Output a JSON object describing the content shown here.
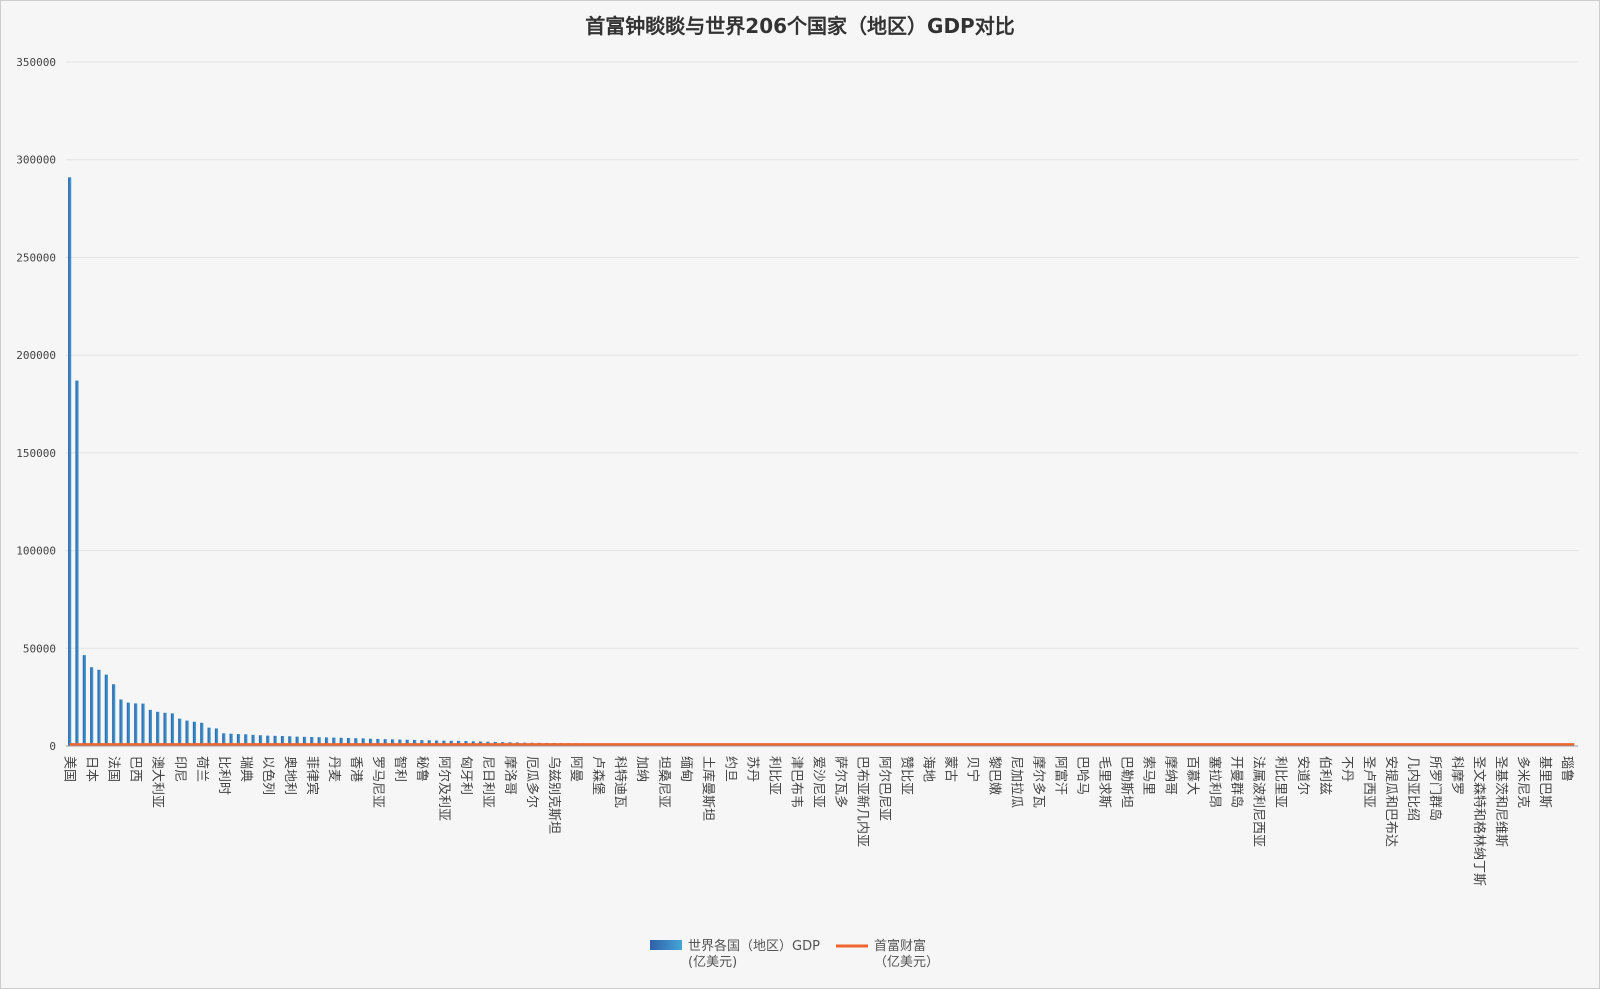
{
  "chart_data": {
    "type": "bar",
    "title": "首富钟睒睒与世界206个国家（地区）GDP对比",
    "categories": [
      "美国",
      null,
      null,
      "日本",
      null,
      null,
      "法国",
      null,
      null,
      "巴西",
      null,
      null,
      "澳大利亚",
      null,
      null,
      "印尼",
      null,
      null,
      "荷兰",
      null,
      null,
      "比利时",
      null,
      null,
      "瑞典",
      null,
      null,
      "以色列",
      null,
      null,
      "奥地利",
      null,
      null,
      "菲律宾",
      null,
      null,
      "丹麦",
      null,
      null,
      "香港",
      null,
      null,
      "罗马尼亚",
      null,
      null,
      "智利",
      null,
      null,
      "秘鲁",
      null,
      null,
      "阿尔及利亚",
      null,
      null,
      "匈牙利",
      null,
      null,
      "尼日利亚",
      null,
      null,
      "摩洛哥",
      null,
      null,
      "厄瓜多尔",
      null,
      null,
      "乌兹别克斯坦",
      null,
      null,
      "阿曼",
      null,
      null,
      "卢森堡",
      null,
      null,
      "科特迪瓦",
      null,
      null,
      "加纳",
      null,
      null,
      "坦桑尼亚",
      null,
      null,
      "缅甸",
      null,
      null,
      "土库曼斯坦",
      null,
      null,
      "约旦",
      null,
      null,
      "苏丹",
      null,
      null,
      "利比亚",
      null,
      null,
      "津巴布韦",
      null,
      null,
      "爱沙尼亚",
      null,
      null,
      "萨尔瓦多",
      null,
      null,
      "巴布亚新几内亚",
      null,
      null,
      "阿尔巴尼亚",
      null,
      null,
      "赞比亚",
      null,
      null,
      "海地",
      null,
      null,
      "蒙古",
      null,
      null,
      "贝宁",
      null,
      null,
      "黎巴嫩",
      null,
      null,
      "尼加拉瓜",
      null,
      null,
      "摩尔多瓦",
      null,
      null,
      "阿富汗",
      null,
      null,
      "巴哈马",
      null,
      null,
      "毛里求斯",
      null,
      null,
      "巴勒斯坦",
      null,
      null,
      "索马里",
      null,
      null,
      "摩纳哥",
      null,
      null,
      "百慕大",
      null,
      null,
      "塞拉利昂",
      null,
      null,
      "开曼群岛",
      null,
      null,
      "法属波利尼西亚",
      null,
      null,
      "利比里亚",
      null,
      null,
      "安道尔",
      null,
      null,
      "伯利兹",
      null,
      null,
      "不丹",
      null,
      null,
      "圣卢西亚",
      null,
      null,
      "安提瓜和巴布达",
      null,
      null,
      "几内亚比绍",
      null,
      null,
      "所罗门群岛",
      null,
      null,
      "科摩罗",
      null,
      null,
      "圣文森特和格林纳丁斯",
      null,
      null,
      "圣基茨和尼维斯",
      null,
      null,
      "多米尼克",
      null,
      null,
      "基里巴斯",
      null,
      null,
      "瑙鲁",
      null
    ],
    "series": [
      {
        "name": "世界各国（地区）GDP\n(亿美元)",
        "type": "bar",
        "color": "#3a8fcb",
        "values": [
          291000,
          187000,
          46500,
          40300,
          39000,
          36500,
          31600,
          23800,
          22200,
          21800,
          21700,
          18500,
          17500,
          17000,
          16700,
          14000,
          13000,
          12400,
          11900,
          9400,
          9000,
          6500,
          6300,
          6100,
          6000,
          5700,
          5500,
          5300,
          5200,
          5100,
          5000,
          4800,
          4700,
          4600,
          4500,
          4400,
          4300,
          4200,
          4100,
          4000,
          3900,
          3700,
          3600,
          3500,
          3400,
          3300,
          3200,
          3100,
          3000,
          2900,
          2800,
          2700,
          2650,
          2600,
          2500,
          2400,
          2300,
          2200,
          2100,
          2000,
          1900,
          1800,
          1700,
          1650,
          1600,
          1550,
          1500,
          1450,
          1400,
          1350,
          1300,
          1250,
          1200,
          1150,
          1100,
          1050,
          1000,
          960,
          920,
          880,
          850,
          820,
          800,
          780,
          760,
          740,
          720,
          700,
          680,
          660,
          640,
          620,
          600,
          580,
          560,
          540,
          520,
          500,
          480,
          460,
          440,
          420,
          410,
          400,
          390,
          380,
          370,
          360,
          350,
          340,
          330,
          320,
          310,
          300,
          290,
          280,
          270,
          260,
          250,
          240,
          230,
          220,
          210,
          200,
          190,
          180,
          175,
          170,
          165,
          160,
          155,
          150,
          145,
          140,
          135,
          130,
          125,
          120,
          115,
          110,
          105,
          100,
          95,
          90,
          86,
          82,
          78,
          74,
          70,
          66,
          62,
          58,
          55,
          52,
          49,
          46,
          43,
          40,
          38,
          36,
          34,
          32,
          30,
          28,
          26,
          24,
          22,
          20,
          19,
          18,
          17,
          16,
          15,
          14,
          13,
          12,
          11,
          10,
          9.5,
          9,
          8.5,
          8,
          7.5,
          7,
          6.5,
          6,
          5.5,
          5,
          4.5,
          4,
          3.5,
          3,
          2.8,
          2.6,
          2.4,
          2.2,
          2,
          1.8,
          1.6,
          1.5,
          1.4,
          1.3,
          1.2,
          1.1,
          1,
          0.9
        ]
      },
      {
        "name": "首富财富\n（亿美元）",
        "type": "line",
        "color": "#f0652f",
        "values": [
          730,
          730,
          730,
          730,
          730,
          730,
          730,
          730,
          730,
          730,
          730,
          730,
          730,
          730,
          730,
          730,
          730,
          730,
          730,
          730,
          730,
          730,
          730,
          730,
          730,
          730,
          730,
          730,
          730,
          730,
          730,
          730,
          730,
          730,
          730,
          730,
          730,
          730,
          730,
          730,
          730,
          730,
          730,
          730,
          730,
          730,
          730,
          730,
          730,
          730,
          730,
          730,
          730,
          730,
          730,
          730,
          730,
          730,
          730,
          730,
          730,
          730,
          730,
          730,
          730,
          730,
          730,
          730,
          730,
          730,
          730,
          730,
          730,
          730,
          730,
          730,
          730,
          730,
          730,
          730,
          730,
          730,
          730,
          730,
          730,
          730,
          730,
          730,
          730,
          730,
          730,
          730,
          730,
          730,
          730,
          730,
          730,
          730,
          730,
          730,
          730,
          730,
          730,
          730,
          730,
          730,
          730,
          730,
          730,
          730,
          730,
          730,
          730,
          730,
          730,
          730,
          730,
          730,
          730,
          730,
          730,
          730,
          730,
          730,
          730,
          730,
          730,
          730,
          730,
          730,
          730,
          730,
          730,
          730,
          730,
          730,
          730,
          730,
          730,
          730,
          730,
          730,
          730,
          730,
          730,
          730,
          730,
          730,
          730,
          730,
          730,
          730,
          730,
          730,
          730,
          730,
          730,
          730,
          730,
          730,
          730,
          730,
          730,
          730,
          730,
          730,
          730,
          730,
          730,
          730,
          730,
          730,
          730,
          730,
          730,
          730,
          730,
          730,
          730,
          730,
          730,
          730,
          730,
          730,
          730,
          730,
          730,
          730,
          730,
          730,
          730,
          730,
          730,
          730,
          730,
          730,
          730,
          730,
          730,
          730,
          730,
          730,
          730,
          730,
          730,
          730
        ]
      }
    ],
    "ylim": [
      0,
      350000
    ],
    "yticks": [
      0,
      50000,
      100000,
      150000,
      200000,
      250000,
      300000,
      350000
    ],
    "grid": true,
    "legend": "bottom"
  }
}
